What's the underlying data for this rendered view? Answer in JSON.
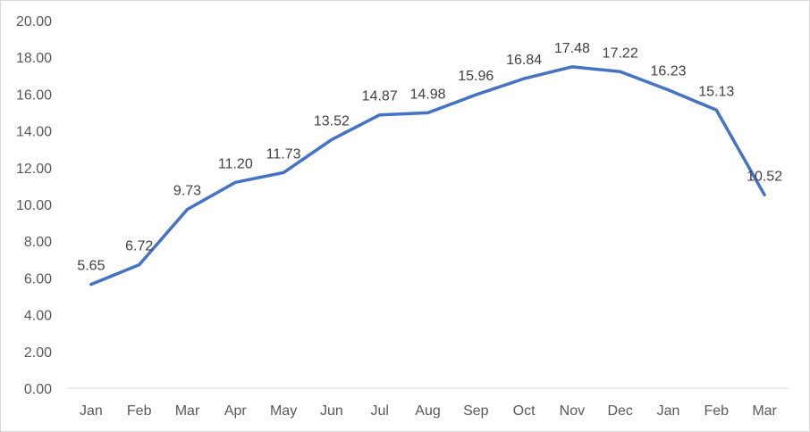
{
  "chart_data": {
    "type": "line",
    "title": "",
    "xlabel": "",
    "ylabel": "",
    "categories": [
      "Jan",
      "Feb",
      "Mar",
      "Apr",
      "May",
      "Jun",
      "Jul",
      "Aug",
      "Sep",
      "Oct",
      "Nov",
      "Dec",
      "Jan",
      "Feb",
      "Mar"
    ],
    "series": [
      {
        "values": [
          5.65,
          6.72,
          9.73,
          11.2,
          11.73,
          13.52,
          14.87,
          14.98,
          15.96,
          16.84,
          17.48,
          17.22,
          16.23,
          15.13,
          10.52
        ]
      }
    ],
    "data_labels": [
      "5.65",
      "6.72",
      "9.73",
      "11.20",
      "11.73",
      "13.52",
      "14.87",
      "14.98",
      "15.96",
      "16.84",
      "17.48",
      "17.22",
      "16.23",
      "15.13",
      "10.52"
    ],
    "ylim": [
      0,
      20
    ],
    "yticks": [
      "0.00",
      "2.00",
      "4.00",
      "6.00",
      "8.00",
      "10.00",
      "12.00",
      "14.00",
      "16.00",
      "18.00",
      "20.00"
    ],
    "grid": false,
    "legend": "none",
    "line_color": "#4472c4",
    "axis_color": "#d9d9d9"
  }
}
